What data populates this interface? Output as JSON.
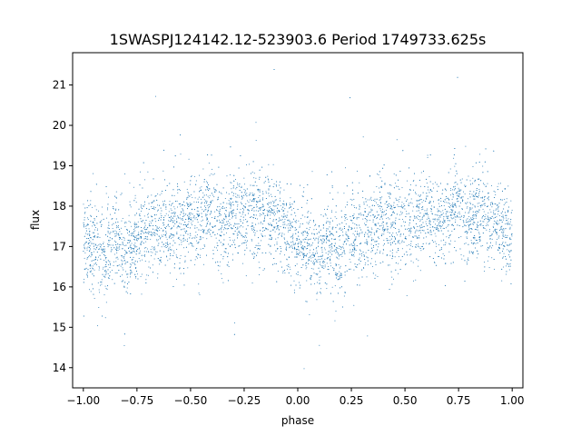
{
  "chart_data": {
    "type": "scatter",
    "title": "1SWASPJ124142.12-523903.6 Period 1749733.625s",
    "xlabel": "phase",
    "ylabel": "flux",
    "xlim": [
      -1.05,
      1.05
    ],
    "ylim": [
      13.5,
      21.8
    ],
    "xticks": [
      -1.0,
      -0.75,
      -0.5,
      -0.25,
      0.0,
      0.25,
      0.5,
      0.75,
      1.0
    ],
    "xtick_labels": [
      "−1.00",
      "−0.75",
      "−0.50",
      "−0.25",
      "0.00",
      "0.25",
      "0.50",
      "0.75",
      "1.00"
    ],
    "yticks": [
      14,
      15,
      16,
      17,
      18,
      19,
      20,
      21
    ],
    "ytick_labels": [
      "14",
      "15",
      "16",
      "17",
      "18",
      "19",
      "20",
      "21"
    ],
    "grid": false,
    "marker_color": "#1f77b4",
    "series": [
      {
        "x": [
          -1.0,
          -0.95,
          -0.9,
          -0.85,
          -0.8,
          -0.75,
          -0.7,
          -0.65,
          -0.6,
          -0.55,
          -0.5,
          -0.45,
          -0.4,
          -0.35,
          -0.3,
          -0.25,
          -0.2,
          -0.15,
          -0.1,
          -0.05,
          0.0,
          0.05,
          0.1,
          0.15,
          0.2,
          0.25,
          0.3,
          0.35,
          0.4,
          0.45,
          0.5,
          0.55,
          0.6,
          0.65,
          0.7,
          0.75,
          0.8,
          0.85,
          0.9,
          0.95,
          1.0
        ],
        "y": [
          17.2,
          17.0,
          16.6,
          17.3,
          16.7,
          17.4,
          17.3,
          17.5,
          17.6,
          17.5,
          17.7,
          17.6,
          17.9,
          17.5,
          17.8,
          17.9,
          17.8,
          17.7,
          17.6,
          17.4,
          17.2,
          17.0,
          16.6,
          17.3,
          16.7,
          17.4,
          17.3,
          17.5,
          17.6,
          17.5,
          17.7,
          17.6,
          17.9,
          17.5,
          17.8,
          17.9,
          17.8,
          17.7,
          17.6,
          17.4,
          17.2
        ]
      }
    ]
  }
}
